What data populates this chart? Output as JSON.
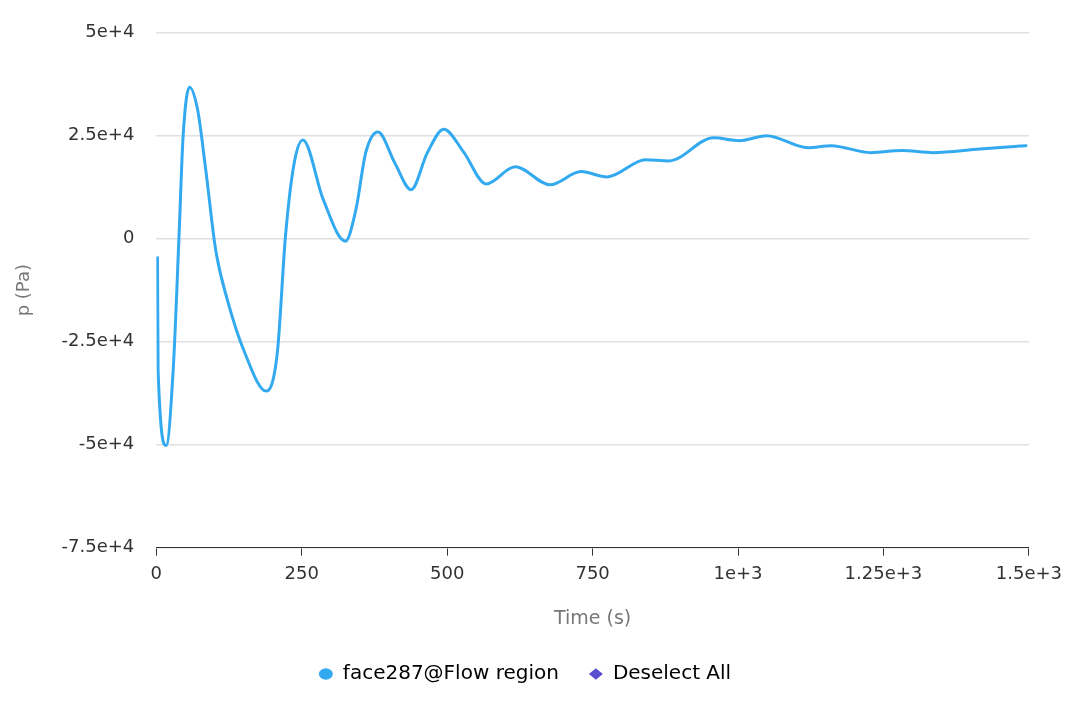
{
  "chart_data": {
    "type": "line",
    "xlabel": "Time (s)",
    "ylabel": "p (Pa)",
    "xlim": [
      0,
      1500
    ],
    "xticks": [
      0,
      250,
      500,
      750,
      {
        "value": 1000,
        "label": "1e+3"
      },
      {
        "value": 1250,
        "label": "1.25e+3"
      },
      {
        "value": 1500,
        "label": "1.5e+3"
      }
    ],
    "ylim": [
      -75000,
      50000
    ],
    "yticks": [
      {
        "value": -75000,
        "label": "-7.5e+4"
      },
      {
        "value": -50000,
        "label": "-5e+4"
      },
      {
        "value": -25000,
        "label": "-2.5e+4"
      },
      0,
      {
        "value": 25000,
        "label": "2.5e+4"
      },
      {
        "value": 50000,
        "label": "5e+4"
      }
    ],
    "grid": "y",
    "legend": "bottom",
    "marker": "none",
    "line_style": "solid",
    "series": [
      {
        "name": "face287@Flow region",
        "color": "#33aaf0",
        "x": [
          2,
          3,
          17,
          29,
          39,
          46,
          57,
          71,
          85,
          102,
          122,
          152,
          189,
          208,
          222,
          237,
          252,
          287,
          325,
          343,
          360,
          381,
          410,
          438,
          466,
          494,
          528,
          567,
          617,
          677,
          730,
          775,
          841,
          881,
          958,
          1002,
          1049,
          1120,
          1160,
          1228,
          1281,
          1335,
          1416,
          1495
        ],
        "values": [
          -4600,
          -31800,
          -50200,
          -31800,
          600,
          24800,
          36800,
          31300,
          16700,
          -2700,
          -14800,
          -27700,
          -37000,
          -27700,
          600,
          18400,
          24000,
          9500,
          -600,
          7000,
          20900,
          25900,
          18400,
          11900,
          20900,
          26600,
          21100,
          13300,
          17500,
          13100,
          16300,
          15000,
          19200,
          18900,
          24500,
          23800,
          25000,
          22100,
          22600,
          20900,
          21400,
          20900,
          21800,
          22600
        ]
      },
      {
        "name": "Deselect All",
        "color": "#5b4fcf"
      }
    ]
  }
}
